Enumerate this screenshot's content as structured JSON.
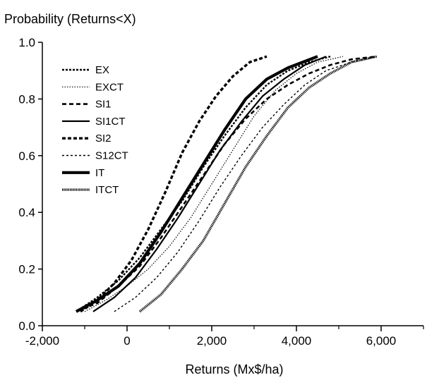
{
  "chart_data": {
    "type": "line",
    "title": "",
    "ylabel": "Probability (Returns<X)",
    "xlabel": "Returns (Mx$/ha)",
    "xlim": [
      -2000,
      7000
    ],
    "ylim": [
      0,
      1.0
    ],
    "x_ticks": [
      -2000,
      0,
      2000,
      4000,
      6000
    ],
    "x_tick_labels": [
      "-2,000",
      "0",
      "2,000",
      "4,000",
      "6,000"
    ],
    "y_ticks": [
      0,
      0.2,
      0.4,
      0.6,
      0.8,
      1.0
    ],
    "y_tick_labels": [
      "0.0",
      "0.2",
      "0.4",
      "0.6",
      "0.8",
      "1.0"
    ],
    "grid": false,
    "legend_position": "upper-left",
    "series": [
      {
        "name": "EX",
        "style": "short-dash-medium",
        "x": [
          -1200,
          -700,
          -200,
          300,
          800,
          1300,
          1800,
          2300,
          2800,
          3300,
          3800,
          4300,
          4800
        ],
        "y": [
          0.05,
          0.1,
          0.16,
          0.24,
          0.34,
          0.44,
          0.56,
          0.67,
          0.77,
          0.85,
          0.9,
          0.93,
          0.95
        ]
      },
      {
        "name": "EXCT",
        "style": "dotted-thin",
        "x": [
          -1000,
          -500,
          0,
          500,
          1000,
          1500,
          2000,
          2500,
          3000,
          3500,
          4000,
          4500,
          5100
        ],
        "y": [
          0.05,
          0.09,
          0.14,
          0.2,
          0.28,
          0.38,
          0.5,
          0.62,
          0.74,
          0.83,
          0.89,
          0.93,
          0.95
        ]
      },
      {
        "name": "SI1",
        "style": "dashed-medium",
        "x": [
          -1200,
          -700,
          -200,
          300,
          800,
          1300,
          1800,
          2300,
          2800,
          3300,
          3800,
          4300,
          4800,
          5300,
          5900
        ],
        "y": [
          0.05,
          0.08,
          0.14,
          0.21,
          0.31,
          0.42,
          0.53,
          0.64,
          0.73,
          0.8,
          0.85,
          0.89,
          0.92,
          0.94,
          0.95
        ]
      },
      {
        "name": "SI1CT",
        "style": "solid-medium",
        "x": [
          -800,
          -300,
          200,
          700,
          1200,
          1700,
          2200,
          2700,
          3200,
          3700,
          4200,
          4700
        ],
        "y": [
          0.05,
          0.1,
          0.17,
          0.27,
          0.38,
          0.5,
          0.62,
          0.72,
          0.81,
          0.87,
          0.92,
          0.95
        ]
      },
      {
        "name": "SI2",
        "style": "dashed-thick",
        "x": [
          -1100,
          -700,
          -300,
          100,
          500,
          900,
          1300,
          1700,
          2100,
          2500,
          2900,
          3300
        ],
        "y": [
          0.05,
          0.09,
          0.15,
          0.23,
          0.34,
          0.47,
          0.61,
          0.72,
          0.81,
          0.88,
          0.93,
          0.95
        ]
      },
      {
        "name": "S12CT",
        "style": "short-dash-thin",
        "x": [
          -300,
          200,
          700,
          1200,
          1700,
          2200,
          2700,
          3200,
          3700,
          4200,
          4700,
          5300,
          5900
        ],
        "y": [
          0.05,
          0.1,
          0.17,
          0.26,
          0.37,
          0.49,
          0.6,
          0.7,
          0.78,
          0.85,
          0.9,
          0.93,
          0.95
        ]
      },
      {
        "name": "IT",
        "style": "solid-thick",
        "x": [
          -1200,
          -700,
          -200,
          300,
          800,
          1300,
          1800,
          2300,
          2800,
          3300,
          3800,
          4500
        ],
        "y": [
          0.05,
          0.09,
          0.14,
          0.22,
          0.33,
          0.45,
          0.57,
          0.69,
          0.8,
          0.87,
          0.91,
          0.95
        ]
      },
      {
        "name": "ITCT",
        "style": "dense-dotted-thick",
        "x": [
          300,
          800,
          1300,
          1800,
          2300,
          2800,
          3300,
          3800,
          4300,
          4800,
          5300,
          5900
        ],
        "y": [
          0.05,
          0.11,
          0.2,
          0.3,
          0.43,
          0.56,
          0.67,
          0.77,
          0.84,
          0.89,
          0.93,
          0.95
        ]
      }
    ]
  }
}
